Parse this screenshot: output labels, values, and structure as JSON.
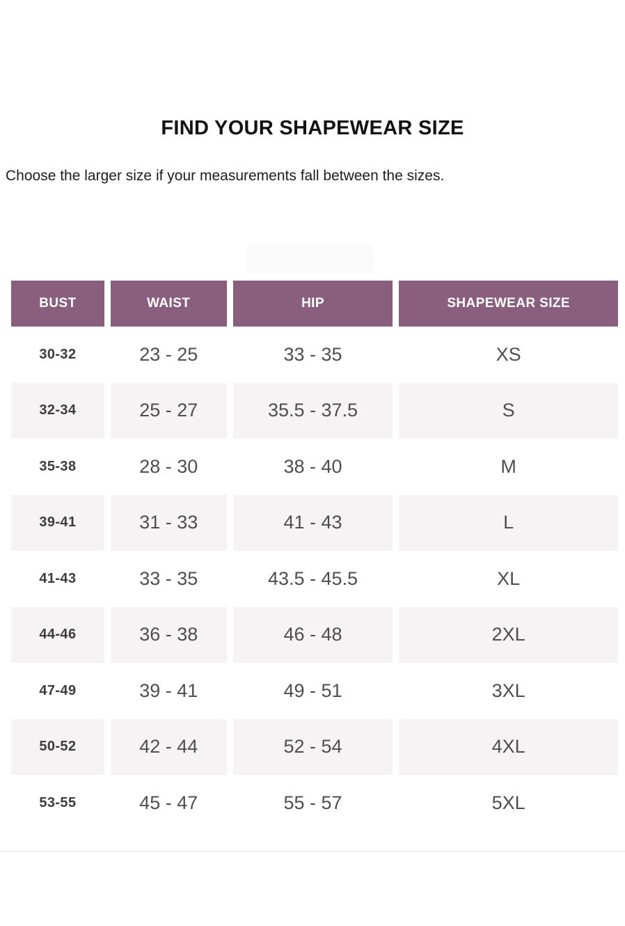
{
  "page": {
    "title": "FIND YOUR SHAPEWEAR SIZE",
    "subtitle": "Choose the larger size if your measurements fall between the sizes."
  },
  "colors": {
    "header_bg": "#8a5f7e",
    "header_text": "#ffffff",
    "row_alt_bg": "#f6f3f5",
    "bust_text": "#3c3c3c",
    "value_text": "#4e4e4e"
  },
  "table": {
    "columns": [
      "BUST",
      "WAIST",
      "HIP",
      "SHAPEWEAR SIZE"
    ],
    "rows": [
      {
        "bust": "30-32",
        "waist": "23 - 25",
        "hip": "33 - 35",
        "size": "XS"
      },
      {
        "bust": "32-34",
        "waist": "25 - 27",
        "hip": "35.5 - 37.5",
        "size": "S"
      },
      {
        "bust": "35-38",
        "waist": "28 - 30",
        "hip": "38 - 40",
        "size": "M"
      },
      {
        "bust": "39-41",
        "waist": "31 - 33",
        "hip": "41 - 43",
        "size": "L"
      },
      {
        "bust": "41-43",
        "waist": "33 - 35",
        "hip": "43.5 - 45.5",
        "size": "XL"
      },
      {
        "bust": "44-46",
        "waist": "36 - 38",
        "hip": "46 - 48",
        "size": "2XL"
      },
      {
        "bust": "47-49",
        "waist": "39 - 41",
        "hip": "49 - 51",
        "size": "3XL"
      },
      {
        "bust": "50-52",
        "waist": "42 - 44",
        "hip": "52 - 54",
        "size": "4XL"
      },
      {
        "bust": "53-55",
        "waist": "45 - 47",
        "hip": "55 - 57",
        "size": "5XL"
      }
    ]
  },
  "chart_data": {
    "type": "table",
    "title": "FIND YOUR SHAPEWEAR SIZE",
    "note": "Choose the larger size if your measurements fall between the sizes.",
    "columns": [
      "BUST",
      "WAIST",
      "HIP",
      "SHAPEWEAR SIZE"
    ],
    "rows": [
      [
        "30-32",
        "23 - 25",
        "33 - 35",
        "XS"
      ],
      [
        "32-34",
        "25 - 27",
        "35.5 - 37.5",
        "S"
      ],
      [
        "35-38",
        "28 - 30",
        "38 - 40",
        "M"
      ],
      [
        "39-41",
        "31 - 33",
        "41 - 43",
        "L"
      ],
      [
        "41-43",
        "33 - 35",
        "43.5 - 45.5",
        "XL"
      ],
      [
        "44-46",
        "36 - 38",
        "46 - 48",
        "2XL"
      ],
      [
        "47-49",
        "39 - 41",
        "49 - 51",
        "3XL"
      ],
      [
        "50-52",
        "42 - 44",
        "52 - 54",
        "4XL"
      ],
      [
        "53-55",
        "45 - 47",
        "55 - 57",
        "5XL"
      ]
    ],
    "layout": {
      "header_style": "solid purple blocks with white gaps between columns",
      "row_striping": "even rows shaded light lavender, odd rows white",
      "units": "inches (implied)"
    }
  }
}
